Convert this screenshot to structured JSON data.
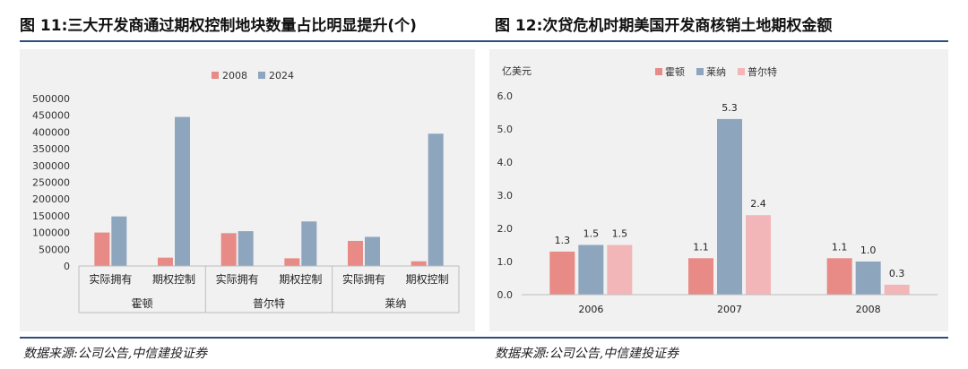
{
  "figures": [
    {
      "title": "图 11:三大开发商通过期权控制地块数量占比明显提升(个)",
      "source": "数据来源:公司公告,中信建投证券"
    },
    {
      "title": "图 12:次贷危机时期美国开发商核销土地期权金额",
      "source": "数据来源:公司公告,中信建投证券"
    }
  ],
  "chart_data": [
    {
      "type": "bar",
      "title": "",
      "groups": [
        "霍顿",
        "普尔特",
        "莱纳"
      ],
      "categories": [
        "实际拥有",
        "期权控制",
        "实际拥有",
        "期权控制",
        "实际拥有",
        "期权控制"
      ],
      "series": [
        {
          "name": "2008",
          "color": "#e88a86",
          "values": [
            100000,
            25000,
            98000,
            23000,
            75000,
            14000
          ]
        },
        {
          "name": "2024",
          "color": "#8ea5be",
          "values": [
            148000,
            445000,
            104000,
            133000,
            87000,
            395000
          ]
        }
      ],
      "ylim": [
        0,
        500000
      ],
      "yticks": [
        "0",
        "50000",
        "100000",
        "150000",
        "200000",
        "250000",
        "300000",
        "350000",
        "400000",
        "450000",
        "500000"
      ],
      "grid": false,
      "legend": "top-center"
    },
    {
      "type": "bar",
      "title": "",
      "ylabel": "亿美元",
      "categories": [
        "2006",
        "2007",
        "2008"
      ],
      "series": [
        {
          "name": "霍顿",
          "color": "#e88a86",
          "values": [
            1.3,
            1.1,
            1.1
          ],
          "labels": [
            "1.3",
            "1.1",
            "1.1"
          ]
        },
        {
          "name": "莱纳",
          "color": "#8ea5be",
          "values": [
            1.5,
            5.3,
            1.0
          ],
          "labels": [
            "1.5",
            "5.3",
            "1.0"
          ]
        },
        {
          "name": "普尔特",
          "color": "#f3b6b8",
          "values": [
            1.5,
            2.4,
            0.3
          ],
          "labels": [
            "1.5",
            "2.4",
            "0.3"
          ]
        }
      ],
      "ylim": [
        0,
        6
      ],
      "yticks": [
        "0.0",
        "1.0",
        "2.0",
        "3.0",
        "4.0",
        "5.0",
        "6.0"
      ],
      "grid": false,
      "legend": "top-center"
    }
  ]
}
